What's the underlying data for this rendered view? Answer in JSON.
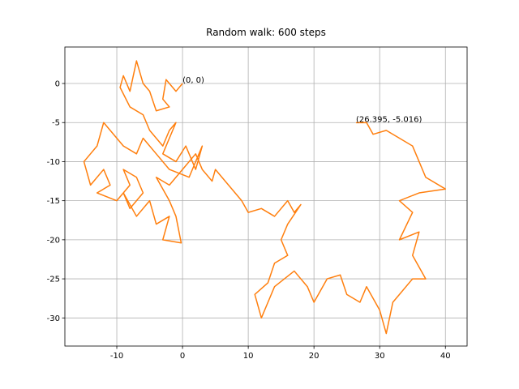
{
  "chart_data": {
    "type": "line",
    "title": "Random walk: 600 steps",
    "x": [
      0,
      -1,
      -2.5,
      -3,
      -2,
      -4,
      -5,
      -6,
      -7,
      -8,
      -9,
      -9.5,
      -8,
      -6,
      -5,
      -3,
      -2,
      -1,
      -3,
      -1,
      0.5,
      2,
      3,
      1,
      -2,
      -4,
      -6,
      -7,
      -9,
      -11,
      -12,
      -13,
      -15,
      -14,
      -12,
      -11,
      -13,
      -10,
      -8,
      -9,
      -7,
      -6,
      -8,
      -9,
      -7,
      -5,
      -4,
      -2,
      -3,
      -0.2,
      -1,
      -2,
      -4,
      -2,
      0,
      2,
      3,
      4.5,
      5,
      7,
      9,
      10,
      12,
      14,
      16,
      17,
      18,
      16,
      15,
      16,
      14,
      13,
      11,
      12,
      13,
      14,
      17,
      19,
      20,
      22,
      24,
      25,
      27,
      28,
      30,
      31,
      32,
      33,
      35,
      37,
      35,
      36,
      33,
      35,
      33,
      36,
      40,
      37,
      36,
      35,
      33,
      31,
      29,
      28,
      26.395
    ],
    "series": [
      {
        "color": "#ff7f0e",
        "values": [
          0,
          -1,
          0.5,
          -2,
          -3,
          -3.5,
          -1,
          0,
          2.9,
          -1,
          1,
          -0.5,
          -3,
          -4,
          -6,
          -8,
          -6,
          -5,
          -9,
          -10,
          -8,
          -11,
          -8,
          -12,
          -11,
          -9,
          -7,
          -9,
          -8,
          -6,
          -5,
          -8,
          -10,
          -13,
          -11,
          -13,
          -14,
          -15,
          -13,
          -11,
          -12,
          -14,
          -16,
          -14,
          -17,
          -15,
          -18,
          -17,
          -20,
          -20.4,
          -17,
          -15,
          -12,
          -13,
          -11,
          -9,
          -11,
          -12.5,
          -11,
          -13,
          -15,
          -16.5,
          -16,
          -17,
          -15,
          -16.5,
          -15.5,
          -18,
          -20,
          -22,
          -23,
          -25.5,
          -27,
          -30,
          -28,
          -26,
          -24,
          -26,
          -28,
          -25,
          -24.5,
          -27,
          -28,
          -26,
          -29,
          -32,
          -28,
          -27,
          -25,
          -25,
          -22,
          -19,
          -20,
          -16.5,
          -15,
          -14,
          -13.5,
          -12,
          -10,
          -8,
          -7,
          -6,
          -6.5,
          -5,
          -5.016
        ]
      }
    ],
    "annotations": [
      {
        "text": "(0, 0)",
        "x": 0,
        "y": 0
      },
      {
        "text": "(26.395, -5.016)",
        "x": 26.395,
        "y": -5.016
      }
    ],
    "xlim": [
      -17.9,
      43.3
    ],
    "ylim": [
      -33.6,
      4.67
    ],
    "xticks": [
      -10,
      0,
      10,
      20,
      30,
      40
    ],
    "yticks": [
      0,
      -5,
      -10,
      -15,
      -20,
      -25,
      -30
    ],
    "grid": true
  }
}
